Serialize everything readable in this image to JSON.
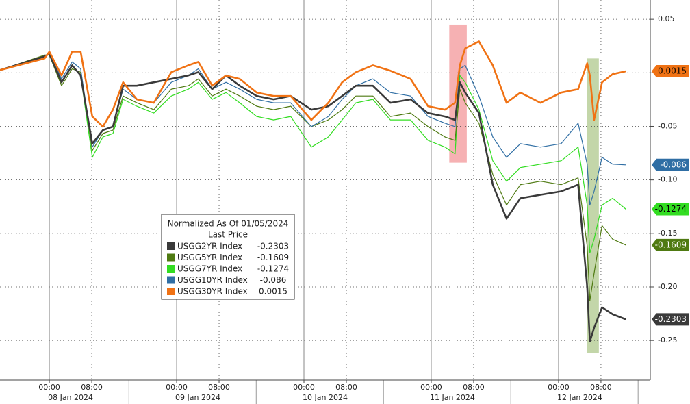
{
  "chart_data": {
    "type": "line",
    "legend_title": "Normalized As Of 01/05/2024",
    "legend_subtitle": "Last Price",
    "x": [
      -9.3,
      -0.9,
      0,
      2.3,
      4.3,
      5.9,
      8.1,
      10.1,
      12.0,
      13.9,
      16.5,
      19.7,
      23.0,
      26.2,
      28.1,
      30.7,
      33.3,
      35.9,
      39.1,
      42.3,
      45.5,
      49.4,
      52.6,
      55.2,
      57.8,
      61.0,
      64.3,
      68.1,
      71.4,
      74.6,
      76.5,
      77.4,
      78.4,
      81.0,
      83.6,
      86.2,
      88.8,
      92.6,
      96.5,
      99.7,
      101.4,
      101.9,
      102.7,
      104.2,
      106.2,
      108.7
    ],
    "xlim": [
      -9.3,
      113.3
    ],
    "xticks": [
      {
        "value": 0,
        "label": "00:00"
      },
      {
        "value": 8,
        "label": "08:00"
      },
      {
        "value": 24,
        "label": "00:00"
      },
      {
        "value": 32,
        "label": "08:00"
      },
      {
        "value": 48,
        "label": "00:00"
      },
      {
        "value": 56,
        "label": "08:00"
      },
      {
        "value": 72,
        "label": "00:00"
      },
      {
        "value": 80,
        "label": "08:00"
      },
      {
        "value": 96,
        "label": "00:00"
      },
      {
        "value": 104,
        "label": "08:00"
      }
    ],
    "dates": [
      "08 Jan 2024",
      "09 Jan 2024",
      "10 Jan 2024",
      "11 Jan 2024",
      "12 Jan 2024"
    ],
    "ylim": [
      -0.287,
      0.068
    ],
    "yticks": [
      0.05,
      {
        "value": 0,
        "label": "0.00"
      },
      -0.05,
      {
        "value": -0.1,
        "label": "-0.10"
      },
      -0.15,
      {
        "value": -0.2,
        "label": "-0.20"
      },
      -0.25
    ],
    "grid": true,
    "highlights": [
      {
        "xrange": [
          75.4,
          78.7
        ],
        "yrange": [
          0.045,
          -0.084
        ],
        "color": "#f4a3a6"
      },
      {
        "xrange": [
          101.3,
          103.6
        ],
        "yrange": [
          0.0134,
          -0.2618
        ],
        "color": "#b9cf9a"
      }
    ],
    "series": [
      {
        "name": "USGG2YR Index",
        "color": "#3a3a3a",
        "tag_text_color": "#ffffff",
        "values": [
          0.0025,
          0.0153,
          0.0178,
          -0.0089,
          0.007,
          -0.0025,
          -0.0662,
          -0.0535,
          -0.0503,
          -0.0121,
          -0.0121,
          -0.0089,
          -0.0057,
          -0.0025,
          0.0006,
          -0.0153,
          -0.0025,
          -0.0121,
          -0.0217,
          -0.0248,
          -0.0217,
          -0.0344,
          -0.0312,
          -0.0217,
          -0.0121,
          -0.0121,
          -0.028,
          -0.0248,
          -0.0376,
          -0.0408,
          -0.044,
          -0.0089,
          -0.0185,
          -0.0376,
          -0.1045,
          -0.1363,
          -0.1172,
          -0.114,
          -0.1108,
          -0.1045,
          -0.2,
          -0.251,
          -0.2382,
          -0.2191,
          -0.2255,
          -0.2303
        ]
      },
      {
        "name": "USGG5YR Index",
        "color": "#4f7a12",
        "tag_text_color": "#ffffff",
        "values": [
          0.0025,
          0.0166,
          0.0166,
          -0.0121,
          0.0038,
          0.0006,
          -0.0726,
          -0.0567,
          -0.0535,
          -0.0217,
          -0.028,
          -0.0344,
          -0.0153,
          -0.0121,
          -0.0057,
          -0.0217,
          -0.0153,
          -0.0217,
          -0.0312,
          -0.0344,
          -0.0312,
          -0.0503,
          -0.044,
          -0.0344,
          -0.0217,
          -0.0217,
          -0.0408,
          -0.0376,
          -0.0503,
          -0.0599,
          -0.0631,
          -0.0153,
          -0.028,
          -0.0471,
          -0.0949,
          -0.1236,
          -0.1045,
          -0.1013,
          -0.1045,
          -0.0981,
          -0.1618,
          -0.2128,
          -0.1873,
          -0.1427,
          -0.1554,
          -0.1609
        ]
      },
      {
        "name": "USGG7YR Index",
        "color": "#33dd22",
        "tag_text_color": "#000000",
        "values": [
          0.0025,
          0.0153,
          0.0178,
          -0.0089,
          0.007,
          -0.0025,
          -0.079,
          -0.0599,
          -0.0567,
          -0.0248,
          -0.0312,
          -0.0376,
          -0.0217,
          -0.0153,
          -0.0089,
          -0.0248,
          -0.0185,
          -0.028,
          -0.0408,
          -0.044,
          -0.0408,
          -0.0694,
          -0.0599,
          -0.044,
          -0.028,
          -0.0248,
          -0.044,
          -0.044,
          -0.0631,
          -0.0694,
          -0.0758,
          -0.0025,
          -0.0089,
          -0.0344,
          -0.0822,
          -0.1013,
          -0.0885,
          -0.0854,
          -0.0822,
          -0.0694,
          -0.1236,
          -0.1682,
          -0.1554,
          -0.1236,
          -0.1172,
          -0.1274
        ]
      },
      {
        "name": "USGG10YR Index",
        "color": "#2f6ea4",
        "tag_text_color": "#ffffff",
        "values": [
          0.0025,
          0.0147,
          0.0191,
          -0.0057,
          0.0102,
          0.0038,
          -0.0694,
          -0.0535,
          -0.0503,
          -0.0153,
          -0.0248,
          -0.028,
          -0.0089,
          -0.0025,
          0.0038,
          -0.0153,
          -0.0089,
          -0.0153,
          -0.0248,
          -0.028,
          -0.028,
          -0.0503,
          -0.0408,
          -0.0248,
          -0.0121,
          -0.0057,
          -0.0185,
          -0.0217,
          -0.0408,
          -0.0471,
          -0.0503,
          0.0038,
          0.007,
          -0.0217,
          -0.0599,
          -0.079,
          -0.0662,
          -0.0694,
          -0.0662,
          -0.0471,
          -0.0854,
          -0.1236,
          -0.1108,
          -0.079,
          -0.0854,
          -0.086
        ]
      },
      {
        "name": "USGG30YR Index",
        "color": "#f07214",
        "tag_text_color": "#000000",
        "values": [
          0.0025,
          0.0134,
          0.0197,
          -0.0025,
          0.0197,
          0.0197,
          -0.0408,
          -0.0503,
          -0.0344,
          -0.0089,
          -0.0248,
          -0.028,
          0.0006,
          0.007,
          0.0102,
          -0.0121,
          -0.0025,
          -0.0057,
          -0.0185,
          -0.0217,
          -0.0217,
          -0.044,
          -0.028,
          -0.0089,
          0.0006,
          0.007,
          0.0019,
          -0.0057,
          -0.0312,
          -0.0344,
          -0.028,
          0.007,
          0.0229,
          0.0293,
          0.007,
          -0.028,
          -0.0185,
          -0.028,
          -0.0185,
          -0.0153,
          0.0089,
          -0.0025,
          -0.044,
          -0.0089,
          -0.0013,
          0.0015
        ]
      }
    ],
    "draw_order": [
      2,
      1,
      3,
      0,
      4
    ]
  }
}
